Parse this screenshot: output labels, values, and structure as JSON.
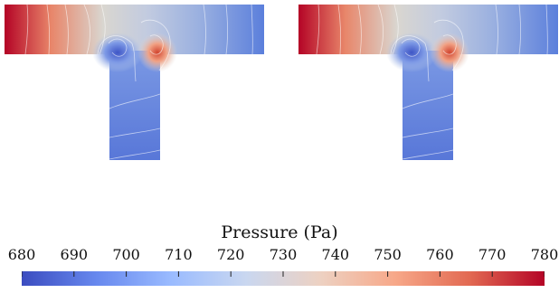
{
  "colorbar": {
    "title": "Pressure (Pa)",
    "min": 680,
    "max": 780,
    "ticks": [
      "680",
      "690",
      "700",
      "710",
      "720",
      "730",
      "740",
      "750",
      "760",
      "770",
      "780"
    ],
    "colormap": [
      "#3b4cc0",
      "#6788ee",
      "#9abbff",
      "#c9d7f0",
      "#edd1c2",
      "#f7a889",
      "#e26952",
      "#b40426"
    ]
  },
  "panels": [
    {
      "name": "left-simulation"
    },
    {
      "name": "right-simulation"
    }
  ]
}
